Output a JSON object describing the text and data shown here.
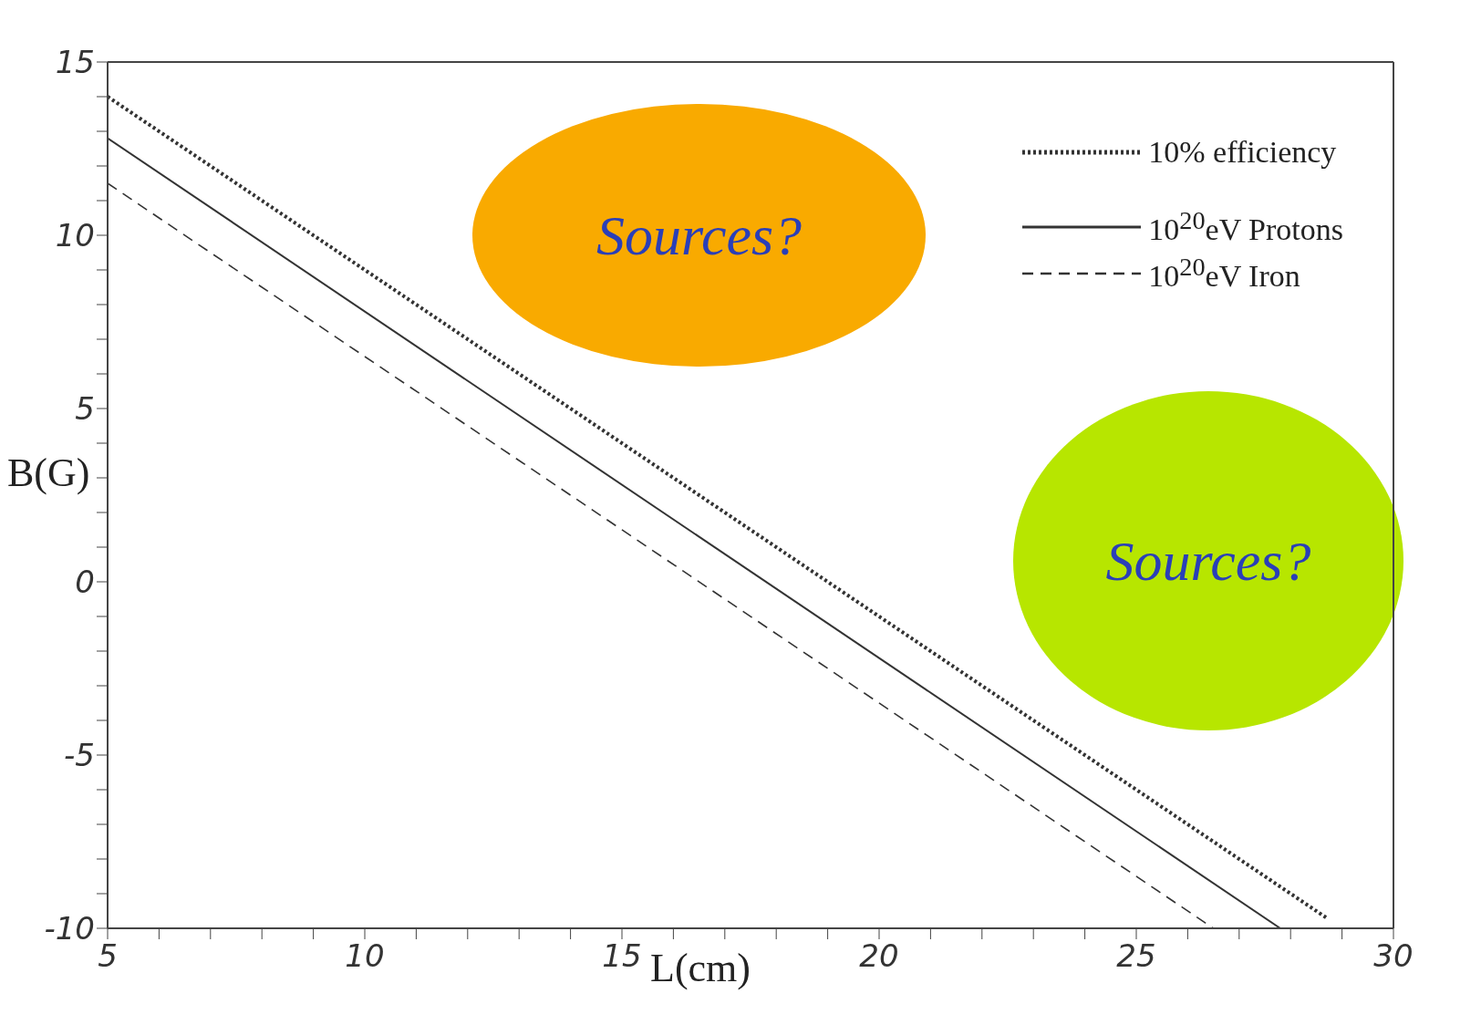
{
  "chart_data": {
    "type": "line",
    "xlabel": "L(cm)",
    "ylabel": "B(G)",
    "xlim": [
      5,
      30
    ],
    "ylim": [
      -10,
      15
    ],
    "xticks": [
      5,
      {
        "value": 6,
        "label": null
      },
      {
        "value": 7,
        "label": null
      },
      {
        "value": 8,
        "label": null
      },
      {
        "value": 9,
        "label": null
      },
      10,
      {
        "value": 11,
        "label": null
      },
      {
        "value": 12,
        "label": null
      },
      {
        "value": 13,
        "label": null
      },
      {
        "value": 14,
        "label": null
      },
      15,
      {
        "value": 16,
        "label": null
      },
      {
        "value": 17,
        "label": null
      },
      {
        "value": 18,
        "label": null
      },
      {
        "value": 19,
        "label": null
      },
      20,
      {
        "value": 21,
        "label": null
      },
      {
        "value": 22,
        "label": null
      },
      {
        "value": 23,
        "label": null
      },
      {
        "value": 24,
        "label": null
      },
      25,
      {
        "value": 26,
        "label": null
      },
      {
        "value": 27,
        "label": null
      },
      {
        "value": 28,
        "label": null
      },
      {
        "value": 29,
        "label": null
      },
      30
    ],
    "yticks": [
      -10,
      {
        "value": -9,
        "label": null
      },
      {
        "value": -8,
        "label": null
      },
      {
        "value": -7,
        "label": null
      },
      {
        "value": -6,
        "label": null
      },
      -5,
      {
        "value": -4,
        "label": null
      },
      {
        "value": -3,
        "label": null
      },
      {
        "value": -2,
        "label": null
      },
      {
        "value": -1,
        "label": null
      },
      0,
      {
        "value": 1,
        "label": null
      },
      {
        "value": 2,
        "label": null
      },
      {
        "value": 3,
        "label": null
      },
      {
        "value": 4,
        "label": null
      },
      5,
      {
        "value": 6,
        "label": null
      },
      {
        "value": 7,
        "label": null
      },
      {
        "value": 8,
        "label": null
      },
      {
        "value": 9,
        "label": null
      },
      10,
      {
        "value": 11,
        "label": null
      },
      {
        "value": 12,
        "label": null
      },
      {
        "value": 13,
        "label": null
      },
      {
        "value": 14,
        "label": null
      },
      15
    ],
    "grid": false,
    "legend": "top right",
    "marker": "none",
    "series": [
      {
        "name": "10% efficiency",
        "color": "#333333",
        "line_style": "dotted",
        "x": [
          5,
          28.7
        ],
        "values": [
          14,
          -9.7
        ]
      },
      {
        "name": "10$^{20}$eV Protons",
        "color": "#333333",
        "line_style": "solid",
        "x": [
          5,
          27.8
        ],
        "values": [
          12.8,
          -10
        ]
      },
      {
        "name": "10$^{20}$eV Iron",
        "color": "#333333",
        "line_style": "dashed",
        "x": [
          5,
          26.5
        ],
        "values": [
          11.5,
          -10
        ]
      }
    ],
    "annotations": [
      "Sources?",
      "Sources?"
    ]
  }
}
